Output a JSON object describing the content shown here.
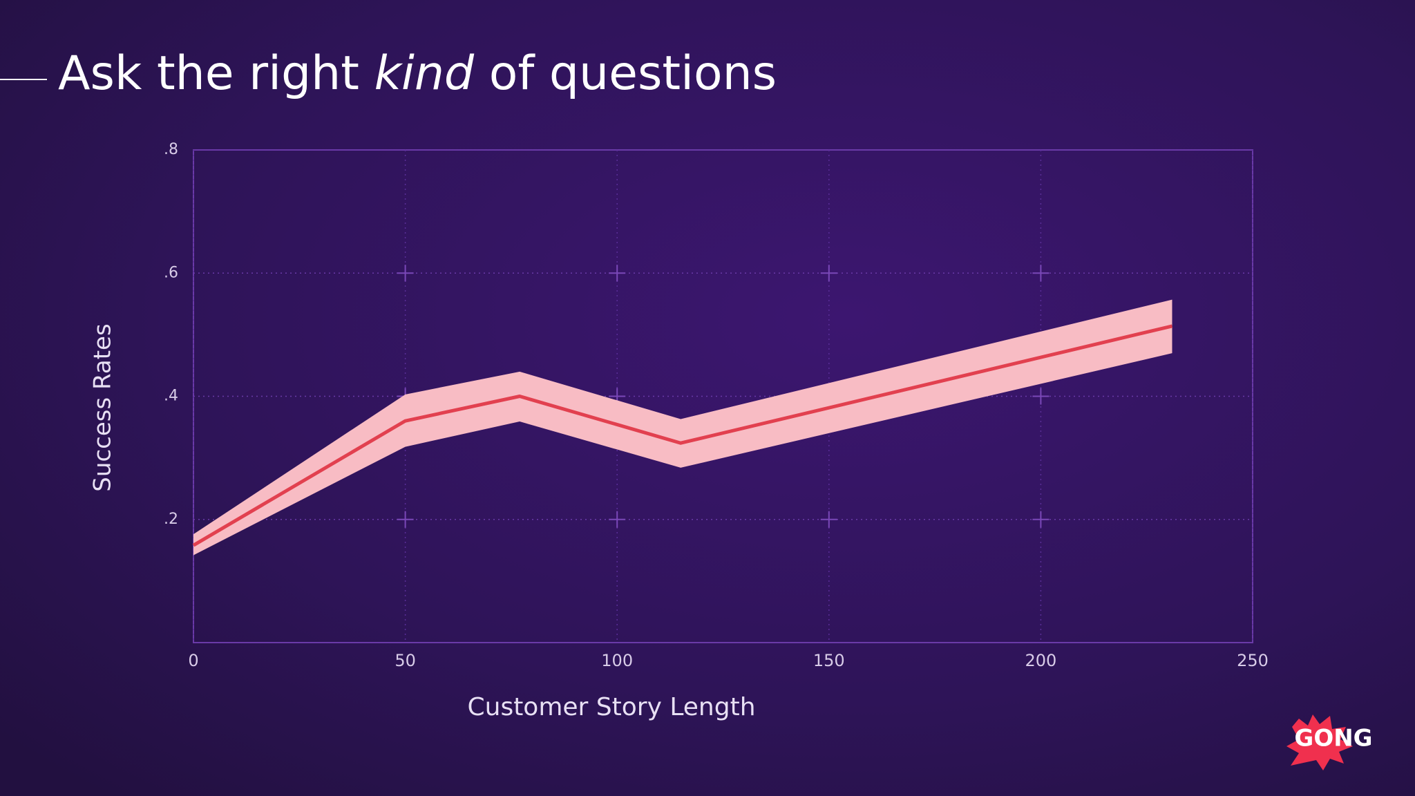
{
  "chart_data": {
    "type": "line",
    "title": {
      "before": "Ask the right",
      "emphasis": "kind",
      "after": "of questions"
    },
    "x_label": "Customer Story Length",
    "y_label": "Success Rates",
    "x": [
      0,
      50,
      77,
      115,
      231
    ],
    "series": [
      {
        "color": "#e2404f",
        "band_color": "#f8bcc4",
        "values": [
          0.158,
          0.36,
          0.4,
          0.324,
          0.514
        ],
        "upper": [
          0.176,
          0.403,
          0.44,
          0.363,
          0.557
        ],
        "lower": [
          0.142,
          0.318,
          0.359,
          0.284,
          0.47
        ]
      }
    ],
    "xlim": [
      0,
      250
    ],
    "xticks": [
      0,
      50,
      100,
      150,
      200,
      250
    ],
    "ylim": [
      0,
      0.8
    ],
    "yticks": [
      {
        "value": 0.2,
        "label": ".2"
      },
      {
        "value": 0.4,
        "label": ".4"
      },
      {
        "value": 0.6,
        "label": ".6"
      },
      {
        "value": 0.8,
        "label": ".8"
      }
    ],
    "grid": true
  },
  "logo": "GONG"
}
